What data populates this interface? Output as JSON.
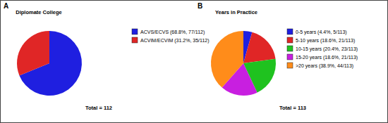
{
  "chart_data": [
    {
      "type": "pie",
      "panel_label": "A",
      "title": "Diplomate College",
      "categories": [
        "ACVS/ECVS (68.8%, 77/112)",
        "ACVIM/ECVIM (31.2%, 35/112)"
      ],
      "values": [
        68.8,
        31.2
      ],
      "colors": [
        "#1f1fe0",
        "#e02626"
      ],
      "legend": "right",
      "annotations": [
        "Total = 112"
      ]
    },
    {
      "type": "pie",
      "panel_label": "B",
      "title": "Years in Practice",
      "categories": [
        "0-5 years (4.4%, 5/113)",
        "5-10 years (18.6%, 21/113)",
        "10-15 years (20.4%, 23/113)",
        "15-20 years (18.6%, 21/113)",
        ">20 years (38.9%, 44/113)"
      ],
      "values": [
        4.4,
        18.6,
        20.4,
        18.6,
        38.9
      ],
      "colors": [
        "#1f1fe0",
        "#e02626",
        "#1fc21f",
        "#c81fe0",
        "#ff8c1a"
      ],
      "legend": "right",
      "annotations": [
        "Total = 113"
      ]
    }
  ]
}
